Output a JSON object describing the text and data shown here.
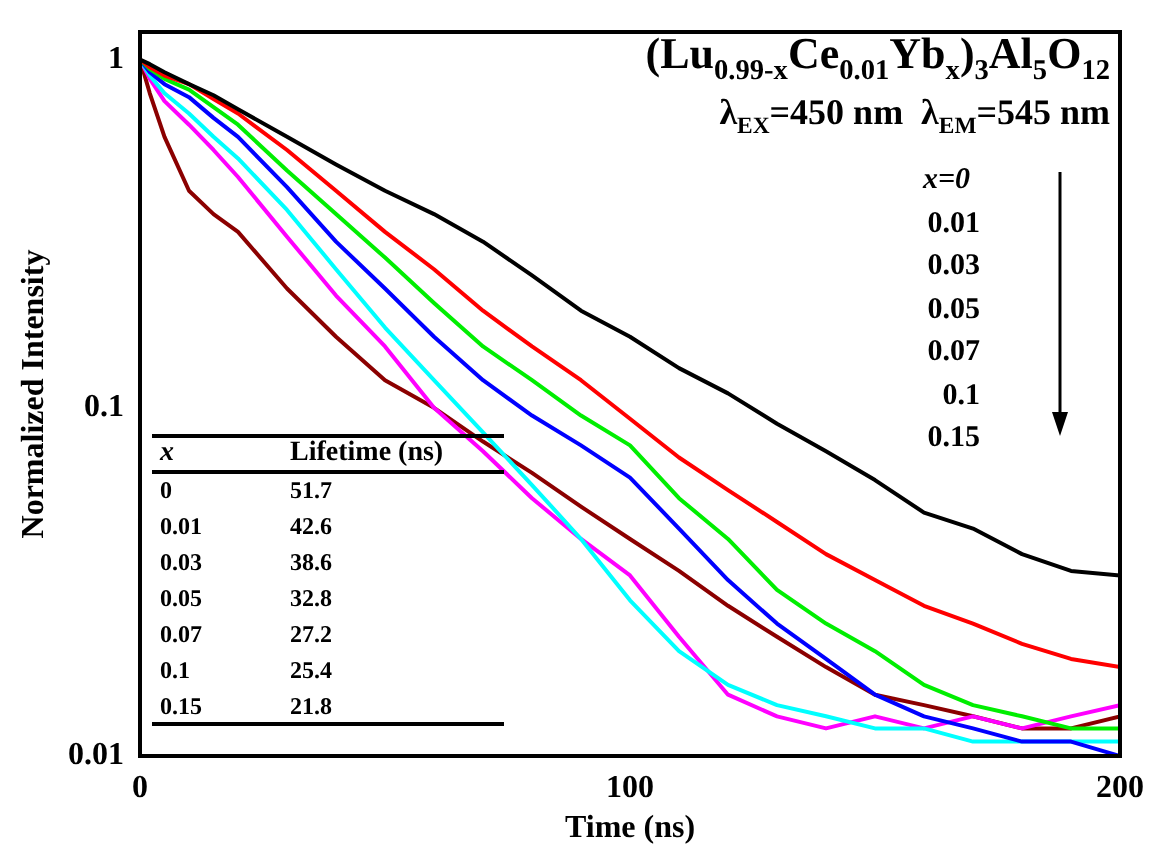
{
  "chart_data": {
    "type": "line",
    "title": "(Lu$_{0.99-x}$Ce$_{0.01}$Yb$_{x}$)$_{3}$Al$_{5}$O$_{12}$",
    "subtitle": "λ$_{EX}$=450 nm  λ$_{EM}$=545 nm",
    "xlabel": "Time (ns)",
    "ylabel": "Normalized Intensity",
    "x": [
      0,
      2,
      5,
      10,
      15,
      20,
      30,
      40,
      50,
      60,
      70,
      80,
      90,
      100,
      110,
      120,
      130,
      140,
      150,
      160,
      170,
      180,
      190,
      200
    ],
    "series": [
      {
        "color": "#000000",
        "values": [
          1,
          0.97,
          0.92,
          0.85,
          0.79,
          0.72,
          0.6,
          0.5,
          0.42,
          0.36,
          0.3,
          0.24,
          0.19,
          0.16,
          0.13,
          0.11,
          0.09,
          0.075,
          0.062,
          0.05,
          0.045,
          0.038,
          0.034,
          0.033
        ]
      },
      {
        "color": "#ff0000",
        "values": [
          1,
          0.95,
          0.9,
          0.85,
          0.77,
          0.7,
          0.55,
          0.42,
          0.32,
          0.25,
          0.19,
          0.15,
          0.12,
          0.093,
          0.072,
          0.058,
          0.047,
          0.038,
          0.032,
          0.027,
          0.024,
          0.021,
          0.019,
          0.018
        ]
      },
      {
        "color": "#00ee00",
        "values": [
          1,
          0.94,
          0.88,
          0.82,
          0.73,
          0.65,
          0.48,
          0.36,
          0.27,
          0.2,
          0.15,
          0.12,
          0.095,
          0.078,
          0.055,
          0.042,
          0.03,
          0.024,
          0.02,
          0.016,
          0.014,
          0.013,
          0.012,
          0.012
        ]
      },
      {
        "color": "#0000ff",
        "values": [
          1,
          0.92,
          0.85,
          0.78,
          0.68,
          0.6,
          0.43,
          0.3,
          0.22,
          0.16,
          0.12,
          0.095,
          0.078,
          0.063,
          0.045,
          0.032,
          0.024,
          0.019,
          0.015,
          0.013,
          0.012,
          0.011,
          0.011,
          0.01
        ]
      },
      {
        "color": "#00ffff",
        "values": [
          1,
          0.9,
          0.8,
          0.7,
          0.6,
          0.52,
          0.37,
          0.25,
          0.17,
          0.12,
          0.085,
          0.06,
          0.042,
          0.028,
          0.02,
          0.016,
          0.014,
          0.013,
          0.012,
          0.012,
          0.011,
          0.011,
          0.011,
          0.011
        ]
      },
      {
        "color": "#ff00ff",
        "values": [
          1,
          0.88,
          0.76,
          0.65,
          0.55,
          0.46,
          0.31,
          0.21,
          0.15,
          0.1,
          0.075,
          0.055,
          0.042,
          0.033,
          0.022,
          0.015,
          0.013,
          0.012,
          0.013,
          0.012,
          0.013,
          0.012,
          0.013,
          0.014
        ]
      },
      {
        "color": "#8b0000",
        "values": [
          1,
          0.8,
          0.6,
          0.42,
          0.36,
          0.32,
          0.22,
          0.16,
          0.12,
          0.1,
          0.08,
          0.065,
          0.052,
          0.042,
          0.034,
          0.027,
          0.022,
          0.018,
          0.015,
          0.014,
          0.013,
          0.012,
          0.012,
          0.013
        ]
      }
    ],
    "xlim": [
      0,
      200
    ],
    "xticks": [
      0,
      100,
      200
    ],
    "ylim": [
      0.01,
      1.2
    ],
    "yticks": [
      0.01,
      0.1,
      1
    ],
    "log": true,
    "grid": false,
    "legend": false,
    "annotations": [
      "x=0",
      "0.01",
      "0.03",
      "0.05",
      "0.07",
      "0.1",
      "0.15",
      "x",
      "Lifetime (ns)",
      "0",
      "51.7",
      "0.01",
      "42.6",
      "0.03",
      "38.6",
      "0.05",
      "32.8",
      "0.07",
      "27.2",
      "0.1",
      "25.4",
      "0.15",
      "21.8"
    ]
  }
}
